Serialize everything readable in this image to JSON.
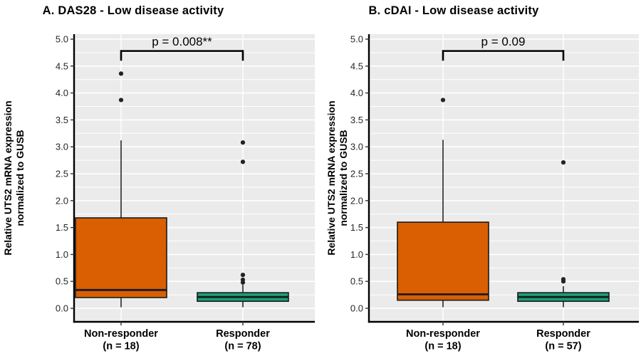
{
  "style": {
    "background": "#FFFFFF",
    "panel_bg": "#EBEBEB",
    "grid_color": "#FFFFFF",
    "axis_color": "#000000",
    "box_stroke": "#1A1A1A",
    "outlier_color": "#222222",
    "tick_label_color": "#262626",
    "nonresponder_color": "#D95F02",
    "responder_color": "#1B9E77"
  },
  "chart_data": [
    {
      "type": "boxplot",
      "panel": "a",
      "title": "A. DAS28 - Low disease activity",
      "ylabel_lines": [
        "Relative UTS2 mRNA expression",
        "normalized to GUSB"
      ],
      "xlabel": "",
      "ylim": [
        0,
        5.0
      ],
      "ytick_labels": [
        "0.0",
        "0.5",
        "1.0",
        "1.5",
        "2.0",
        "2.5",
        "3.0",
        "3.5",
        "4.0",
        "4.5",
        "5.0"
      ],
      "grid": "major and minor horizontal, white on gray panel",
      "legend": "none",
      "significance": {
        "label": "p = 0.008**",
        "bar_value": 4.78,
        "tick_bottom_value": 4.6
      },
      "groups": [
        {
          "label": "Non-responder",
          "n_label": "(n = 18)",
          "color": "#D95F02",
          "whisker_low": 0.02,
          "q1": 0.2,
          "median": 0.34,
          "q3": 1.68,
          "whisker_high": 3.12,
          "outliers": [
            3.87,
            4.36
          ]
        },
        {
          "label": "Responder",
          "n_label": "(n = 78)",
          "color": "#1B9E77",
          "whisker_low": 0.02,
          "q1": 0.13,
          "median": 0.21,
          "q3": 0.29,
          "whisker_high": 0.44,
          "outliers": [
            0.48,
            0.53,
            0.62,
            2.72,
            3.08
          ]
        }
      ]
    },
    {
      "type": "boxplot",
      "panel": "b",
      "title": "B. cDAI - Low disease activity",
      "ylabel_lines": [
        "Relative UTS2 mRNA expression",
        "normalized to GUSB"
      ],
      "xlabel": "",
      "ylim": [
        0,
        5.0
      ],
      "ytick_labels": [
        "0.0",
        "0.5",
        "1.0",
        "1.5",
        "2.0",
        "2.5",
        "3.0",
        "3.5",
        "4.0",
        "4.5",
        "5.0"
      ],
      "grid": "major and minor horizontal, white on gray panel",
      "legend": "none",
      "significance": {
        "label": "p = 0.09",
        "bar_value": 4.78,
        "tick_bottom_value": 4.6
      },
      "groups": [
        {
          "label": "Non-responder",
          "n_label": "(n = 18)",
          "color": "#D95F02",
          "whisker_low": 0.02,
          "q1": 0.15,
          "median": 0.26,
          "q3": 1.6,
          "whisker_high": 3.13,
          "outliers": [
            3.87
          ]
        },
        {
          "label": "Responder",
          "n_label": "(n = 57)",
          "color": "#1B9E77",
          "whisker_low": 0.02,
          "q1": 0.13,
          "median": 0.21,
          "q3": 0.29,
          "whisker_high": 0.41,
          "outliers": [
            0.5,
            0.54,
            2.71
          ]
        }
      ]
    }
  ]
}
